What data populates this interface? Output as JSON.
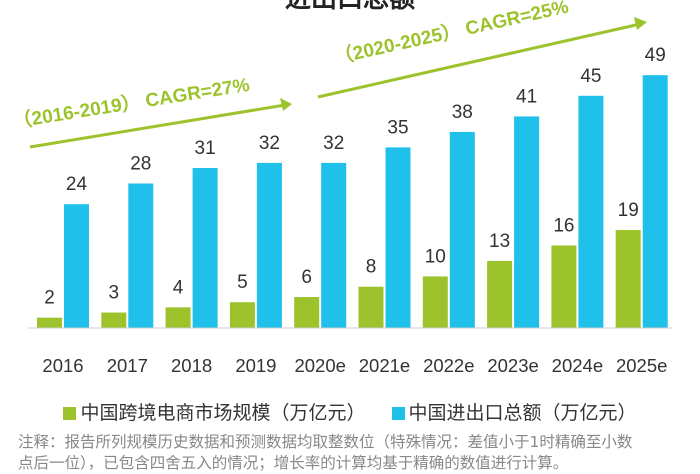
{
  "title": "进出口总额",
  "chart_data": {
    "type": "bar",
    "categories": [
      "2016",
      "2017",
      "2018",
      "2019",
      "2020e",
      "2021e",
      "2022e",
      "2023e",
      "2024e",
      "2025e"
    ],
    "series": [
      {
        "name": "中国跨境电商市场规模（万亿元）",
        "color": "#9dc32c",
        "values": [
          2,
          3,
          4,
          5,
          6,
          8,
          10,
          13,
          16,
          19
        ]
      },
      {
        "name": "中国进出口总额（万亿元）",
        "color": "#1fc0ea",
        "values": [
          24,
          28,
          31,
          32,
          32,
          35,
          38,
          41,
          45,
          49
        ]
      }
    ],
    "annotations": [
      {
        "text": "（2016-2019） CAGR=27%",
        "color": "#9dc32c"
      },
      {
        "text": "（2020-2025） CAGR=25%",
        "color": "#9dc32c"
      }
    ],
    "legend": "bottom",
    "grid": false
  },
  "note": {
    "line1": "注释：报告所列规模历史数据和预测数据均取整数位（特殊情况：差值小于1时精确至小数",
    "line2": "点后一位），已包含四舍五入的情况；增长率的计算均基于精确的数值进行计算。"
  }
}
